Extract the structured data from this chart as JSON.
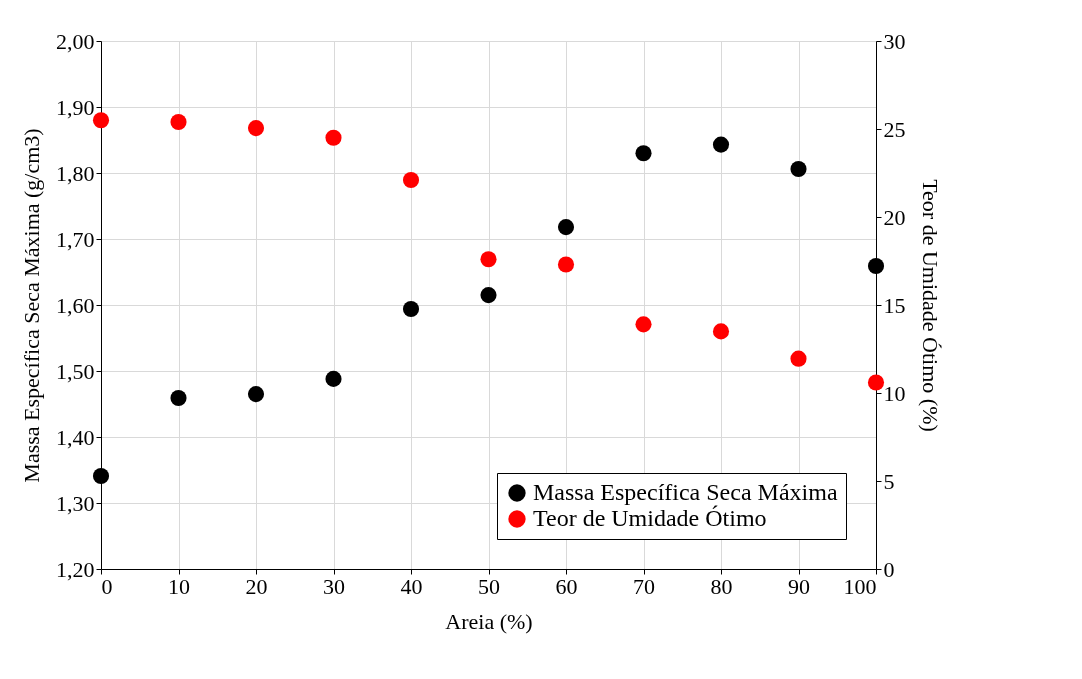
{
  "chart_data": {
    "type": "scatter",
    "xlabel": "Areia (%)",
    "ylabel": "Massa Específica Seca Máxima (g/cm3)",
    "y2label": "Teor de Umidade Ótimo (%)",
    "x": [
      0,
      10,
      20,
      30,
      40,
      50,
      60,
      70,
      80,
      90,
      100
    ],
    "series": [
      {
        "name": "Massa Específica Seca Máxima",
        "color": "#000000",
        "values": [
          1.341,
          1.459,
          1.465,
          1.488,
          1.594,
          1.615,
          1.718,
          1.83,
          1.843,
          1.806,
          1.659
        ]
      },
      {
        "name": "Teor de Umidade Ótimo",
        "color": "#ff0000",
        "axis": "y2",
        "values": [
          25.5,
          25.4,
          25.05,
          24.5,
          22.1,
          17.6,
          17.3,
          13.9,
          13.5,
          11.95,
          10.6
        ]
      }
    ],
    "xlim": [
      0,
      100
    ],
    "xticks": [
      0,
      10,
      20,
      30,
      40,
      50,
      60,
      70,
      80,
      90,
      100
    ],
    "ylim": [
      1.2,
      2.0
    ],
    "yticks": [
      {
        "value": 1.2,
        "label": "1,20"
      },
      {
        "value": 1.3,
        "label": "1,30"
      },
      {
        "value": 1.4,
        "label": "1,40"
      },
      {
        "value": 1.5,
        "label": "1,50"
      },
      {
        "value": 1.6,
        "label": "1,60"
      },
      {
        "value": 1.7,
        "label": "1,70"
      },
      {
        "value": 1.8,
        "label": "1,80"
      },
      {
        "value": 1.9,
        "label": "1,90"
      },
      {
        "value": 2.0,
        "label": "2,00"
      }
    ],
    "y2lim": [
      0,
      30
    ],
    "y2ticks": [
      0,
      5,
      10,
      15,
      20,
      25,
      30
    ],
    "grid": true,
    "legend": "bottom right",
    "marker": "circle"
  }
}
